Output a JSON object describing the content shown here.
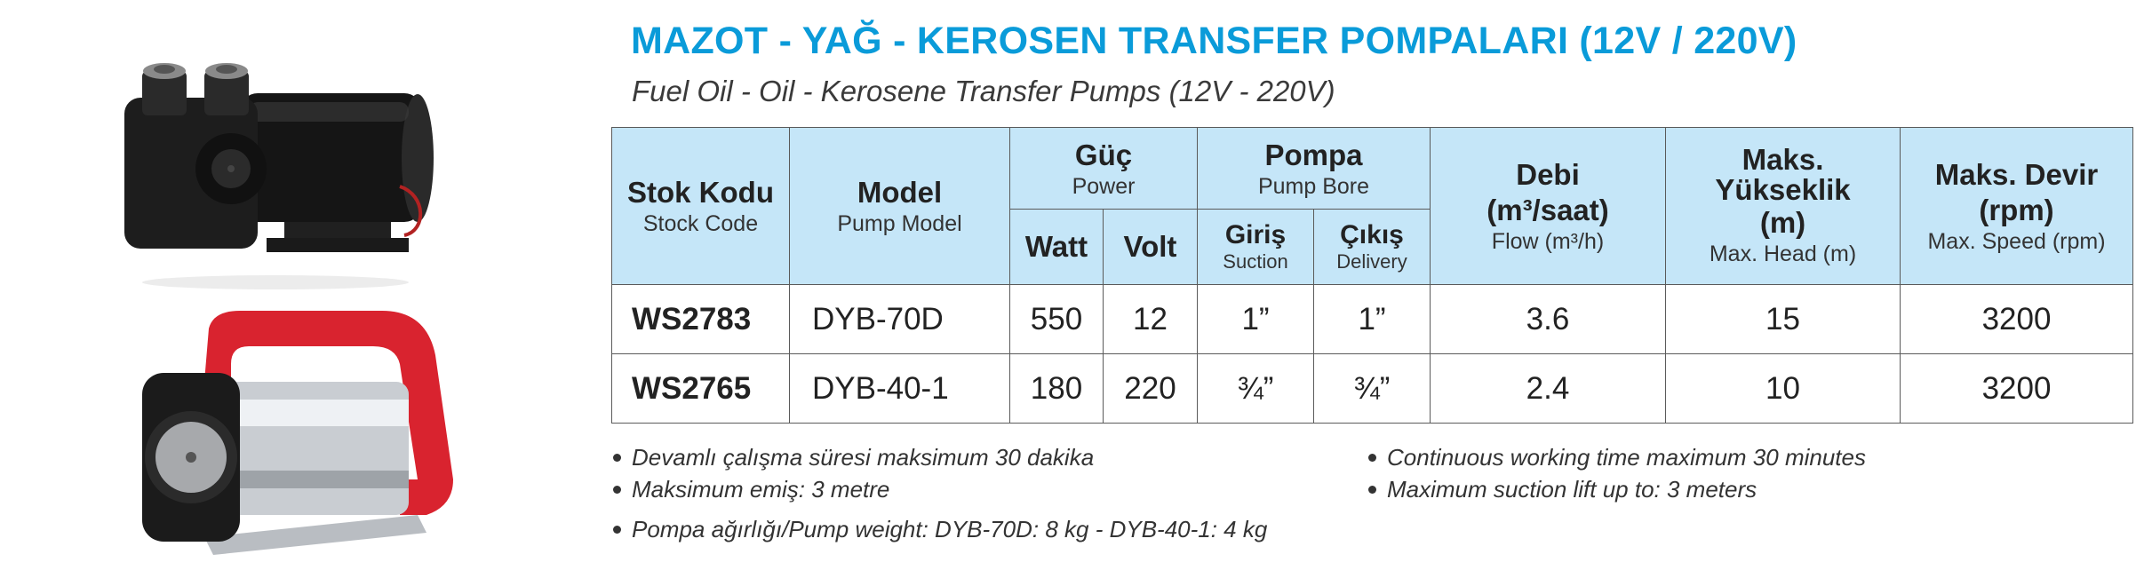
{
  "title": "MAZOT - YAĞ - KEROSEN TRANSFER POMPALARI (12V / 220V)",
  "subtitle": "Fuel Oil - Oil - Kerosene Transfer Pumps (12V - 220V)",
  "table": {
    "headers": {
      "stock_code": {
        "tr": "Stok Kodu",
        "en": "Stock Code"
      },
      "model": {
        "tr": "Model",
        "en": "Pump Model"
      },
      "power": {
        "tr": "Güç",
        "en": "Power",
        "watt": "Watt",
        "volt": "Volt"
      },
      "pump": {
        "tr": "Pompa",
        "en": "Pump Bore",
        "suction_tr": "Giriş",
        "suction_en": "Suction",
        "delivery_tr": "Çıkış",
        "delivery_en": "Delivery"
      },
      "flow": {
        "tr1": "Debi",
        "tr2": "(m³/saat)",
        "en": "Flow (m³/h)"
      },
      "head": {
        "tr1": "Maks.",
        "tr2": "Yükseklik",
        "tr3": "(m)",
        "en": "Max. Head (m)"
      },
      "speed": {
        "tr1": "Maks. Devir",
        "tr2": "(rpm)",
        "en": "Max. Speed (rpm)"
      }
    },
    "rows": [
      {
        "code": "WS2783",
        "model": "DYB-70D",
        "watt": "550",
        "volt": "12",
        "suction": "1”",
        "delivery": "1”",
        "flow": "3.6",
        "head": "15",
        "speed": "3200"
      },
      {
        "code": "WS2765",
        "model": "DYB-40-1",
        "watt": "180",
        "volt": "220",
        "suction": "¾”",
        "delivery": "¾”",
        "flow": "2.4",
        "head": "10",
        "speed": "3200"
      }
    ]
  },
  "notes": {
    "tr": [
      "Devamlı çalışma süresi maksimum 30 dakika",
      "Maksimum emiş: 3 metre"
    ],
    "en": [
      "Continuous working time maximum 30 minutes",
      "Maximum suction lift up to: 3 meters"
    ],
    "weight": "Pompa ağırlığı/Pump weight: DYB-70D: 8 kg - DYB-40-1: 4 kg"
  },
  "colors": {
    "title": "#0a9bd9",
    "header_bg": "#c5e6f8",
    "handle": "#d9232f"
  }
}
